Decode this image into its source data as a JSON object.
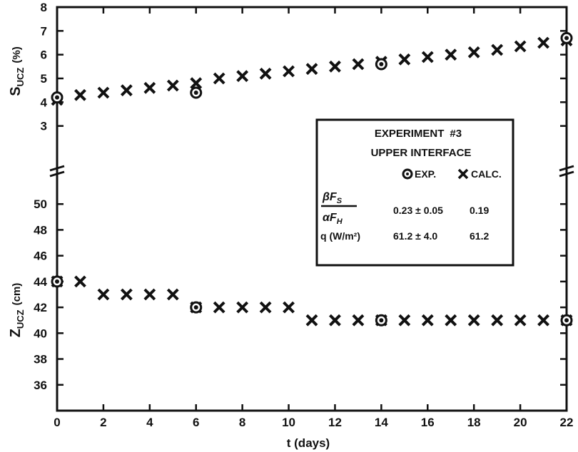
{
  "chart_data": {
    "type": "scatter",
    "xlabel": "t (days)",
    "xlim": [
      0,
      22
    ],
    "x_ticks": [
      "0",
      "2",
      "4",
      "6",
      "8",
      "10",
      "12",
      "14",
      "16",
      "18",
      "20",
      "22"
    ],
    "panels": [
      {
        "ylabel_main": "S",
        "ylabel_sub": "UCZ",
        "ylabel_unit": "(%)",
        "ylim": [
          2,
          8
        ],
        "y_ticks": [
          "3",
          "4",
          "5",
          "6",
          "7",
          "8"
        ],
        "series": [
          {
            "marker": "x",
            "x": [
              0,
              1,
              2,
              3,
              4,
              5,
              6,
              7,
              8,
              9,
              10,
              11,
              12,
              13,
              14,
              15,
              16,
              17,
              18,
              19,
              20,
              21,
              22
            ],
            "y": [
              4.1,
              4.3,
              4.4,
              4.5,
              4.6,
              4.7,
              4.8,
              5.0,
              5.1,
              5.2,
              5.3,
              5.4,
              5.5,
              5.6,
              5.7,
              5.8,
              5.9,
              6.0,
              6.1,
              6.2,
              6.35,
              6.5,
              6.6
            ]
          },
          {
            "marker": "circle",
            "x": [
              0,
              6,
              14,
              22
            ],
            "y": [
              4.2,
              4.4,
              5.6,
              6.7
            ]
          }
        ]
      },
      {
        "ylabel_main": "Z",
        "ylabel_sub": "UCZ",
        "ylabel_unit": "(cm)",
        "ylim": [
          34,
          52
        ],
        "y_ticks": [
          "36",
          "38",
          "40",
          "42",
          "44",
          "46",
          "48",
          "50"
        ],
        "series": [
          {
            "marker": "x",
            "x": [
              0,
              1,
              2,
              3,
              4,
              5,
              6,
              7,
              8,
              9,
              10,
              11,
              12,
              13,
              14,
              15,
              16,
              17,
              18,
              19,
              20,
              21,
              22
            ],
            "y": [
              44,
              44,
              43,
              43,
              43,
              43,
              42,
              42,
              42,
              42,
              42,
              41,
              41,
              41,
              41,
              41,
              41,
              41,
              41,
              41,
              41,
              41,
              41
            ]
          },
          {
            "marker": "circle",
            "x": [
              0,
              6,
              14,
              22
            ],
            "y": [
              44,
              42,
              41,
              41
            ]
          }
        ]
      }
    ],
    "legend": {
      "title1": "EXPERIMENT",
      "title1_mark": "#3",
      "title2": "UPPER INTERFACE",
      "col_exp": "EXP.",
      "col_calc": "CALC.",
      "row1_num": "βF",
      "row1_num_sub": "S",
      "row1_den": "αF",
      "row1_den_sub": "H",
      "row1_exp": "0.23 ± 0.05",
      "row1_calc": "0.19",
      "row2_label": "q (W/m²)",
      "row2_exp": "61.2 ± 4.0",
      "row2_calc": "61.2"
    }
  }
}
